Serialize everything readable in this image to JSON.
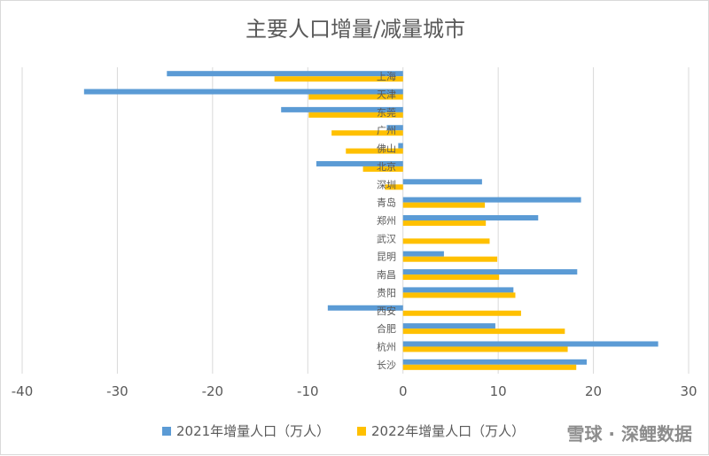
{
  "chart_data": {
    "type": "bar",
    "orientation": "horizontal",
    "title": "主要人口增量/减量城市",
    "categories": [
      "上海",
      "天津",
      "东莞",
      "广州",
      "佛山",
      "北京",
      "深圳",
      "青岛",
      "郑州",
      "武汉",
      "昆明",
      "南昌",
      "贵阳",
      "西安",
      "合肥",
      "杭州",
      "长沙"
    ],
    "series": [
      {
        "name": "2021年增量人口（万人）",
        "color": "#5b9bd5",
        "values": [
          -24.8,
          -33.5,
          -12.8,
          -1.7,
          -0.5,
          -9.1,
          8.3,
          18.7,
          14.2,
          0,
          4.3,
          18.3,
          11.6,
          -7.9,
          9.7,
          26.8,
          19.3
        ]
      },
      {
        "name": "2022年增量人口（万人）",
        "color": "#ffc000",
        "values": [
          -13.5,
          -9.9,
          -9.9,
          -7.5,
          -6.0,
          -4.2,
          -1.9,
          8.6,
          8.7,
          9.1,
          9.9,
          10.1,
          11.8,
          12.4,
          17.0,
          17.3,
          18.2
        ]
      }
    ],
    "xlim": [
      -40,
      30
    ],
    "xticks": [
      "-40",
      "-30",
      "-20",
      "-10",
      "0",
      "10",
      "20",
      "30"
    ],
    "grid": true,
    "legend": "bottom"
  },
  "watermark": "雪球 · 深鲤数据"
}
